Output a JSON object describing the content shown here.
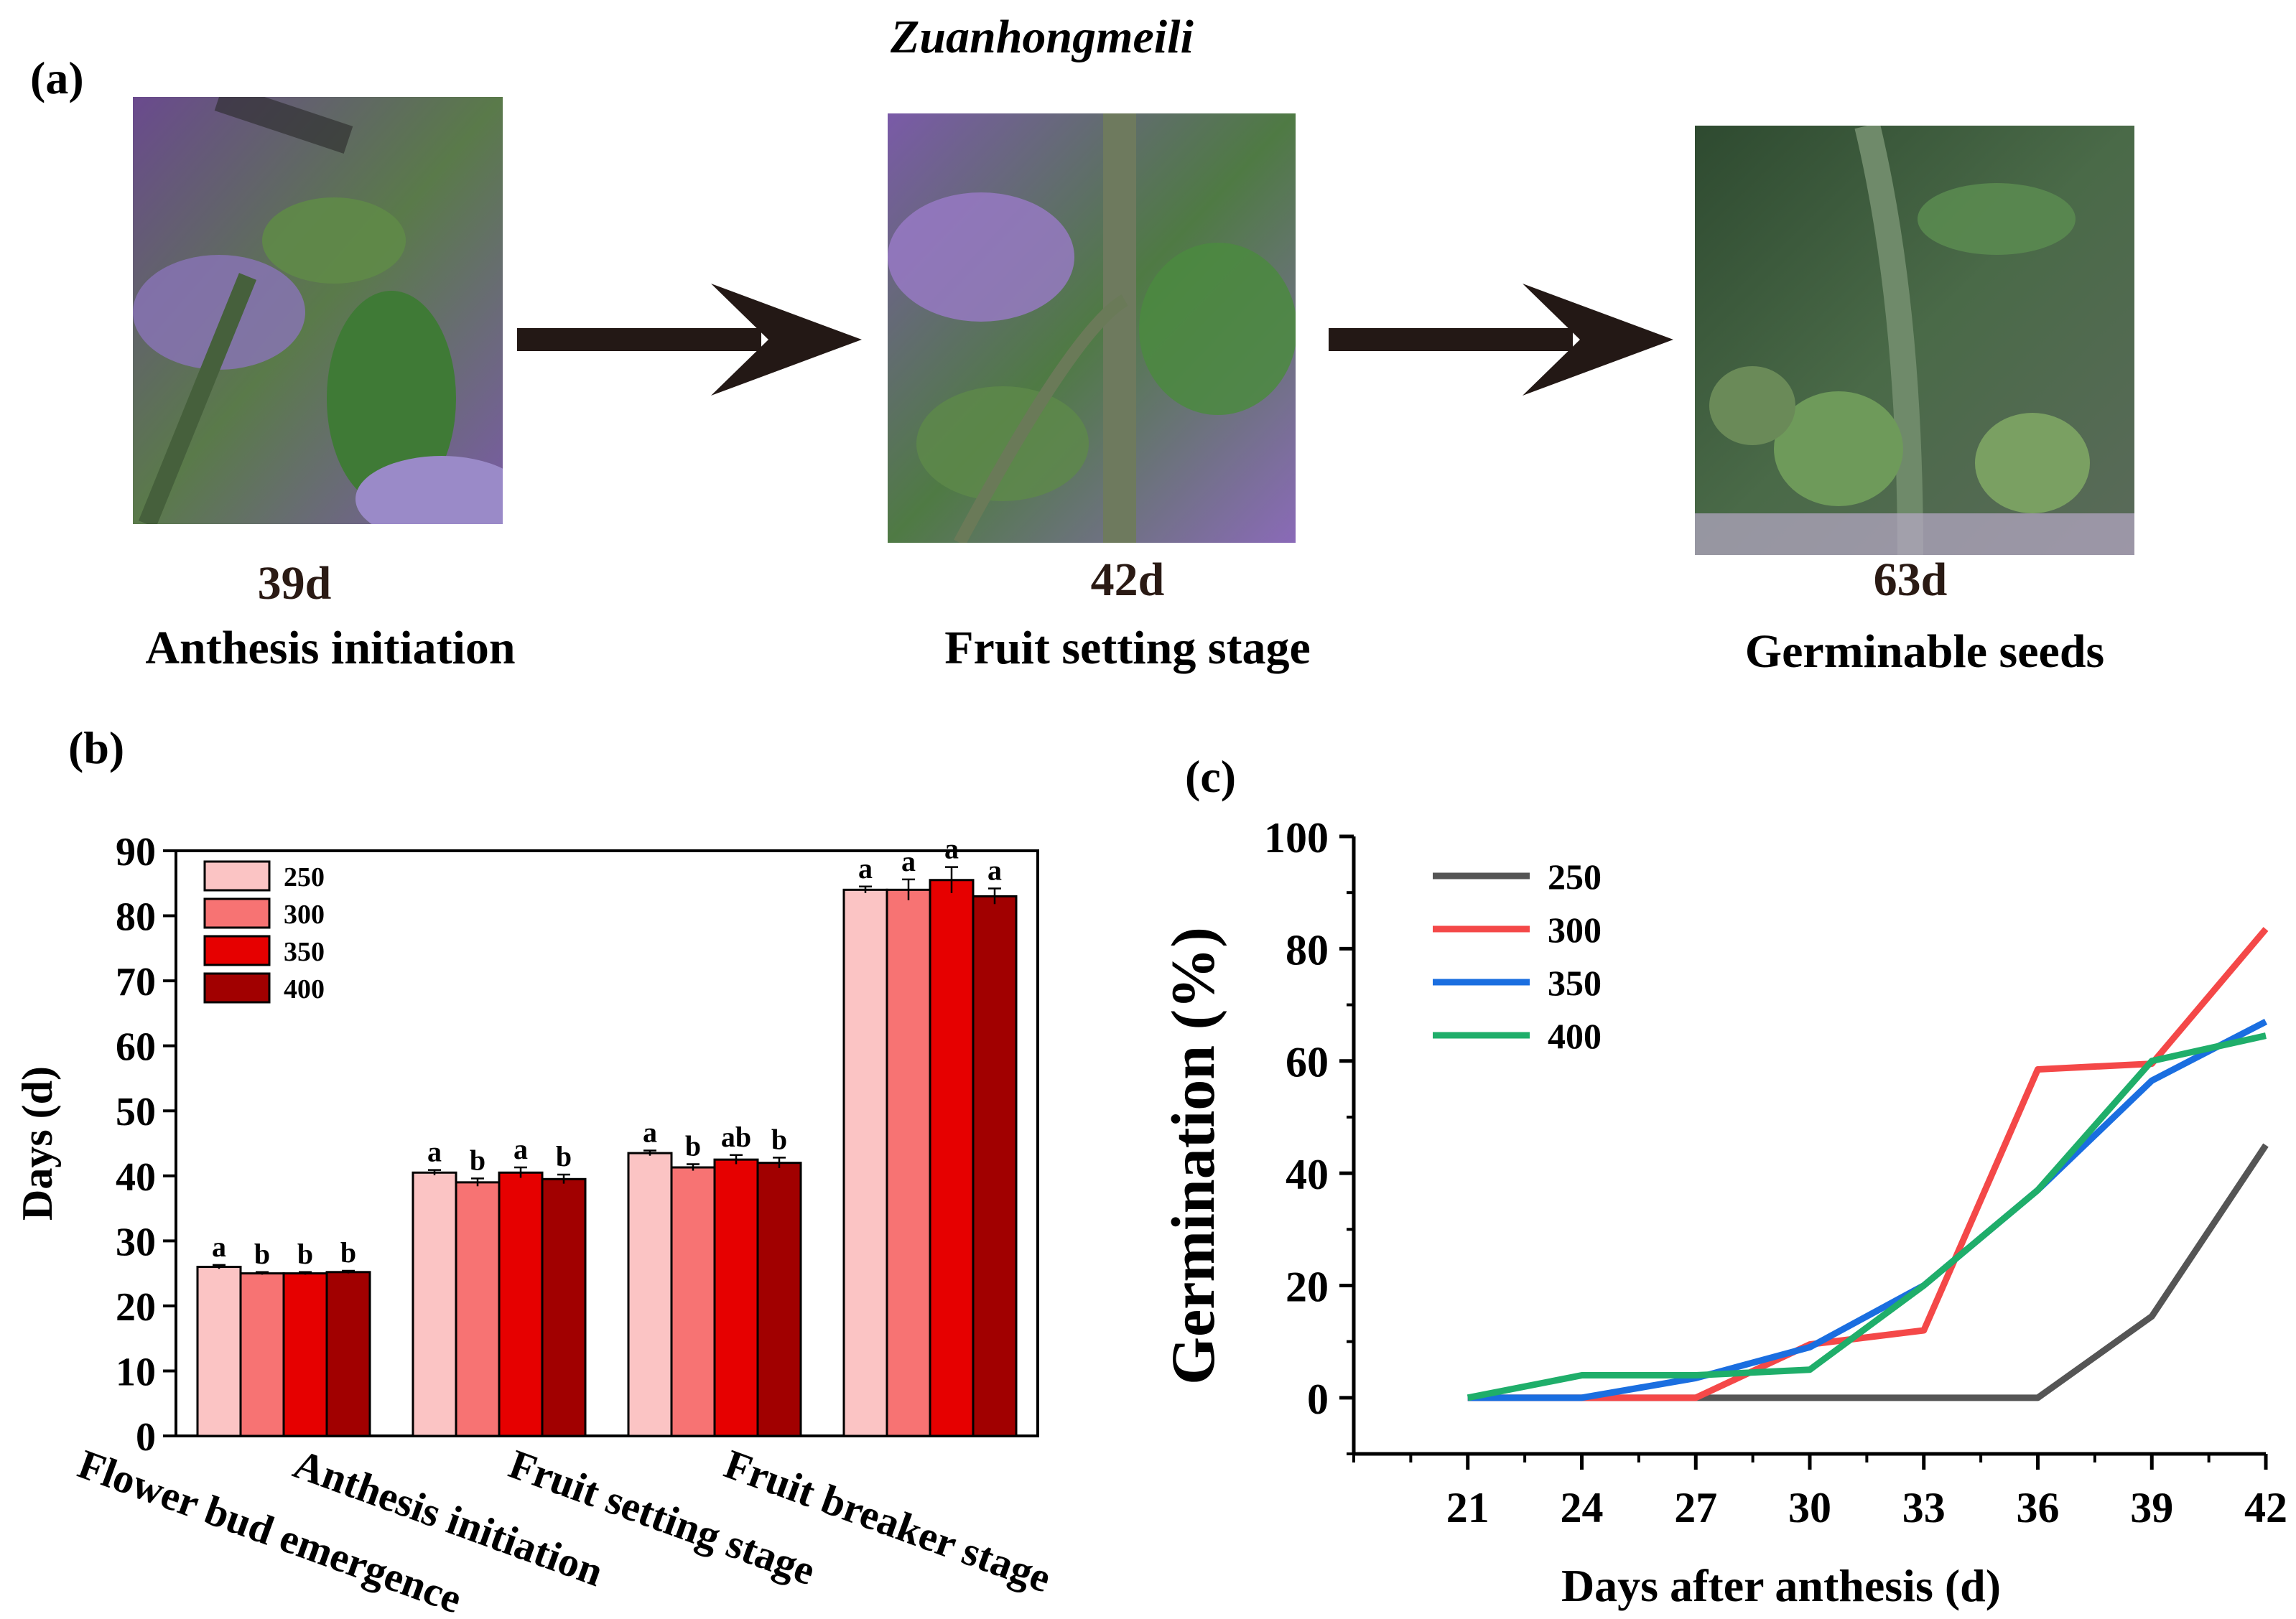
{
  "figure": {
    "title": "Zuanhongmeili",
    "panel_a_label": "(a)",
    "panel_b_label": "(b)",
    "panel_c_label": "(c)"
  },
  "stages": [
    {
      "day": "39d",
      "label": "Anthesis initiation"
    },
    {
      "day": "42d",
      "label": "Fruit setting stage"
    },
    {
      "day": "63d",
      "label": "Germinable seeds"
    }
  ],
  "chart_data": [
    {
      "type": "bar",
      "ylabel": "Days (d)",
      "ylim": [
        0,
        90
      ],
      "yticks": [
        0,
        10,
        20,
        30,
        40,
        50,
        60,
        70,
        80,
        90
      ],
      "categories": [
        "Flower bud emergence",
        "Anthesis initiation",
        "Fruit setting stage",
        "Fruit breaker stage"
      ],
      "series": [
        {
          "name": "250",
          "color": "#fbc4c4",
          "values": [
            26.0,
            40.5,
            43.5,
            84.0
          ],
          "errors": [
            0.3,
            0.4,
            0.4,
            0.5
          ],
          "letters": [
            "a",
            "a",
            "a",
            "a"
          ]
        },
        {
          "name": "300",
          "color": "#f77373",
          "values": [
            25.0,
            39.0,
            41.3,
            84.0
          ],
          "errors": [
            0.2,
            0.6,
            0.5,
            1.6
          ],
          "letters": [
            "b",
            "b",
            "b",
            "a"
          ]
        },
        {
          "name": "350",
          "color": "#e60000",
          "values": [
            25.0,
            40.5,
            42.5,
            85.5
          ],
          "errors": [
            0.2,
            0.8,
            0.7,
            2.0
          ],
          "letters": [
            "b",
            "a",
            "ab",
            "a"
          ]
        },
        {
          "name": "400",
          "color": "#a10000",
          "values": [
            25.2,
            39.5,
            42.0,
            83.0
          ],
          "errors": [
            0.2,
            0.7,
            0.8,
            1.2
          ],
          "letters": [
            "b",
            "b",
            "b",
            "a"
          ]
        }
      ],
      "legend_position": "top-left"
    },
    {
      "type": "line",
      "xlabel": "Days after anthesis (d)",
      "ylabel": "Germination (%)",
      "x": [
        21,
        24,
        27,
        30,
        33,
        36,
        39,
        42
      ],
      "xlim": [
        18,
        42
      ],
      "ylim": [
        -10,
        100
      ],
      "yticks": [
        0,
        20,
        40,
        60,
        80,
        100
      ],
      "series": [
        {
          "name": "250",
          "color": "#555555",
          "values": [
            0,
            0,
            0,
            0,
            0,
            0,
            14.5,
            45
          ]
        },
        {
          "name": "300",
          "color": "#f44848",
          "values": [
            0,
            0,
            0,
            9.5,
            12,
            58.5,
            59.5,
            83.5
          ]
        },
        {
          "name": "350",
          "color": "#1a6ee0",
          "values": [
            0,
            0,
            3.5,
            9,
            20,
            37,
            56.5,
            67
          ]
        },
        {
          "name": "400",
          "color": "#1fae6a",
          "values": [
            0,
            4,
            4,
            5,
            20,
            37,
            60,
            64.5
          ]
        }
      ],
      "legend_position": "top-left"
    }
  ]
}
